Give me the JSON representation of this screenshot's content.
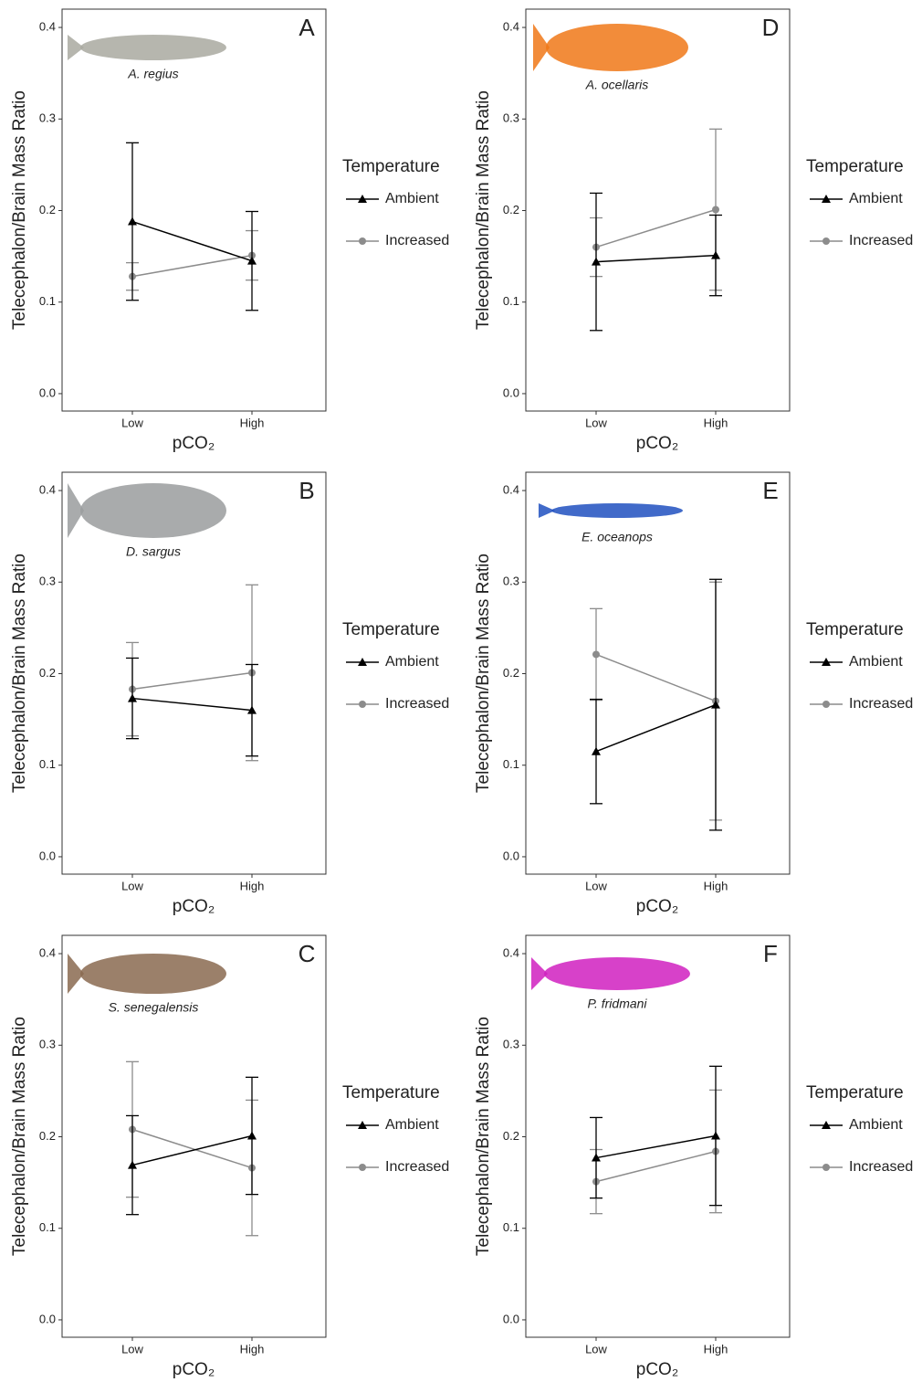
{
  "chart_data": [
    {
      "type": "line",
      "panel_label": "A",
      "species": "A. regius",
      "y_label": "Telecephalon/Brain Mass Ratio",
      "x_label": "pCO₂",
      "categories": [
        "Low",
        "High"
      ],
      "ylim": [
        -0.019,
        0.42
      ],
      "yticks": [
        {
          "value": 0,
          "label": "0.0"
        },
        0.1,
        0.2,
        0.3,
        0.4
      ],
      "legend_title": "Temperature",
      "series": [
        {
          "name": "Ambient",
          "color": "#000000",
          "marker": "triangle",
          "values": [
            0.188,
            0.145
          ],
          "errors": [
            0.086,
            0.054
          ]
        },
        {
          "name": "Increased",
          "color": "#8c8c8c",
          "marker": "circle",
          "values": [
            0.128,
            0.151
          ],
          "errors": [
            0.015,
            0.027
          ]
        }
      ]
    },
    {
      "type": "line",
      "panel_label": "B",
      "species": "D. sargus",
      "y_label": "Telecephalon/Brain Mass Ratio",
      "x_label": "pCO₂",
      "categories": [
        "Low",
        "High"
      ],
      "ylim": [
        -0.019,
        0.42
      ],
      "yticks": [
        {
          "value": 0,
          "label": "0.0"
        },
        0.1,
        0.2,
        0.3,
        0.4
      ],
      "legend_title": "Temperature",
      "series": [
        {
          "name": "Ambient",
          "color": "#000000",
          "marker": "triangle",
          "values": [
            0.173,
            0.16
          ],
          "errors": [
            0.044,
            0.05
          ]
        },
        {
          "name": "Increased",
          "color": "#8c8c8c",
          "marker": "circle",
          "values": [
            0.183,
            0.201
          ],
          "errors": [
            0.051,
            0.096
          ]
        }
      ]
    },
    {
      "type": "line",
      "panel_label": "C",
      "species": "S. senegalensis",
      "y_label": "Telecephalon/Brain Mass Ratio",
      "x_label": "pCO₂",
      "categories": [
        "Low",
        "High"
      ],
      "ylim": [
        -0.019,
        0.42
      ],
      "yticks": [
        {
          "value": 0,
          "label": "0.0"
        },
        0.1,
        0.2,
        0.3,
        0.4
      ],
      "legend_title": "Temperature",
      "series": [
        {
          "name": "Ambient",
          "color": "#000000",
          "marker": "triangle",
          "values": [
            0.169,
            0.201
          ],
          "errors": [
            0.054,
            0.064
          ]
        },
        {
          "name": "Increased",
          "color": "#8c8c8c",
          "marker": "circle",
          "values": [
            0.208,
            0.166
          ],
          "errors": [
            0.074,
            0.074
          ]
        }
      ]
    },
    {
      "type": "line",
      "panel_label": "D",
      "species": "A. ocellaris",
      "y_label": "Telecephalon/Brain Mass Ratio",
      "x_label": "pCO₂",
      "categories": [
        "Low",
        "High"
      ],
      "ylim": [
        -0.019,
        0.42
      ],
      "yticks": [
        {
          "value": 0,
          "label": "0.0"
        },
        0.1,
        0.2,
        0.3,
        0.4
      ],
      "legend_title": "Temperature",
      "series": [
        {
          "name": "Ambient",
          "color": "#000000",
          "marker": "triangle",
          "values": [
            0.144,
            0.151
          ],
          "errors": [
            0.075,
            0.044
          ]
        },
        {
          "name": "Increased",
          "color": "#8c8c8c",
          "marker": "circle",
          "values": [
            0.16,
            0.201
          ],
          "errors": [
            0.032,
            0.088
          ]
        }
      ]
    },
    {
      "type": "line",
      "panel_label": "E",
      "species": "E. oceanops",
      "y_label": "Telecephalon/Brain Mass Ratio",
      "x_label": "pCO₂",
      "categories": [
        "Low",
        "High"
      ],
      "ylim": [
        -0.019,
        0.42
      ],
      "yticks": [
        {
          "value": 0,
          "label": "0.0"
        },
        0.1,
        0.2,
        0.3,
        0.4
      ],
      "legend_title": "Temperature",
      "series": [
        {
          "name": "Ambient",
          "color": "#000000",
          "marker": "triangle",
          "values": [
            0.115,
            0.166
          ],
          "errors": [
            0.057,
            0.137
          ]
        },
        {
          "name": "Increased",
          "color": "#8c8c8c",
          "marker": "circle",
          "values": [
            0.221,
            0.17
          ],
          "errors": [
            0.05,
            0.13
          ]
        }
      ]
    },
    {
      "type": "line",
      "panel_label": "F",
      "species": "P. fridmani",
      "y_label": "Telecephalon/Brain Mass Ratio",
      "x_label": "pCO₂",
      "categories": [
        "Low",
        "High"
      ],
      "ylim": [
        -0.019,
        0.42
      ],
      "yticks": [
        {
          "value": 0,
          "label": "0.0"
        },
        0.1,
        0.2,
        0.3,
        0.4
      ],
      "legend_title": "Temperature",
      "series": [
        {
          "name": "Ambient",
          "color": "#000000",
          "marker": "triangle",
          "values": [
            0.177,
            0.201
          ],
          "errors": [
            0.044,
            0.076
          ]
        },
        {
          "name": "Increased",
          "color": "#8c8c8c",
          "marker": "circle",
          "values": [
            0.151,
            0.184
          ],
          "errors": [
            0.035,
            0.067
          ]
        }
      ]
    }
  ]
}
